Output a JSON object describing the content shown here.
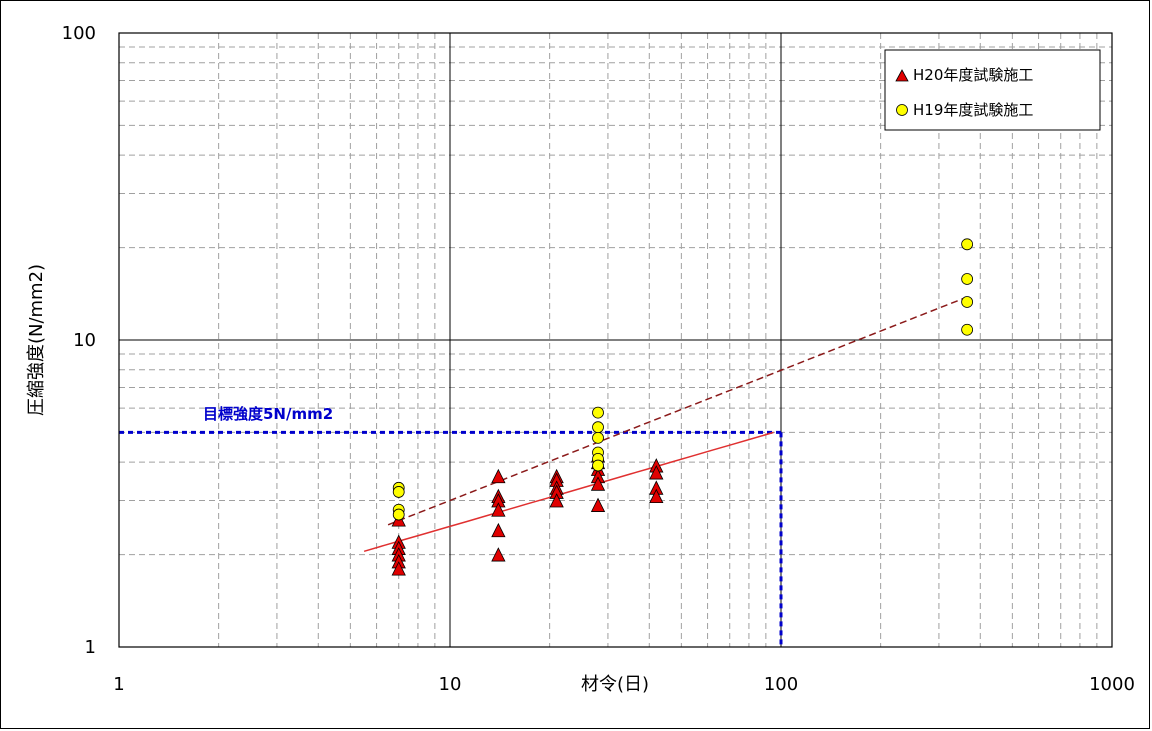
{
  "chart_data": {
    "type": "scatter",
    "title": "",
    "xlabel": "材令(日)",
    "ylabel": "圧縮強度(N/mm2)",
    "xscale": "log",
    "yscale": "log",
    "xlim": [
      1,
      1000
    ],
    "ylim": [
      1,
      100
    ],
    "xticks": [
      "1",
      "10",
      "100",
      "1000"
    ],
    "yticks": [
      "1",
      "10",
      "100"
    ],
    "grid": true,
    "legend_position": "top-right",
    "annotation": {
      "text": "目標強度5N/mm2",
      "target_y": 5,
      "target_x": 100,
      "color": "#0000cc"
    },
    "series": [
      {
        "name": "H20年度試験施工",
        "marker": "triangle",
        "color": "#e00000",
        "x": [
          7,
          7,
          7,
          7,
          7,
          7,
          14,
          14,
          14,
          14,
          14,
          14,
          21,
          21,
          21,
          21,
          21,
          28,
          28,
          28,
          28,
          28,
          28,
          42,
          42,
          42,
          42
        ],
        "y": [
          2.6,
          2.2,
          2.1,
          2.0,
          1.9,
          1.8,
          3.6,
          3.1,
          3.0,
          2.8,
          2.4,
          2.0,
          3.6,
          3.5,
          3.3,
          3.2,
          3.0,
          4.2,
          4.0,
          3.8,
          3.6,
          3.4,
          2.9,
          3.9,
          3.7,
          3.3,
          3.1
        ]
      },
      {
        "name": "H19年度試験施工",
        "marker": "circle",
        "color": "#ffff00",
        "x": [
          7,
          7,
          7,
          7,
          28,
          28,
          28,
          28,
          28,
          28,
          365,
          365,
          365,
          365
        ],
        "y": [
          3.3,
          3.2,
          2.8,
          2.7,
          5.8,
          5.2,
          4.8,
          4.3,
          4.1,
          3.9,
          20.5,
          15.8,
          13.3,
          10.8
        ]
      }
    ],
    "trendlines": [
      {
        "series": "H20年度試験施工",
        "style": "solid",
        "color": "#e03030",
        "x": [
          5.5,
          95
        ],
        "y": [
          2.05,
          5.0
        ]
      },
      {
        "series": "H19年度試験施工",
        "style": "dashed",
        "color": "#8b1a1a",
        "x": [
          6.5,
          365
        ],
        "y": [
          2.5,
          13.8
        ]
      }
    ]
  }
}
